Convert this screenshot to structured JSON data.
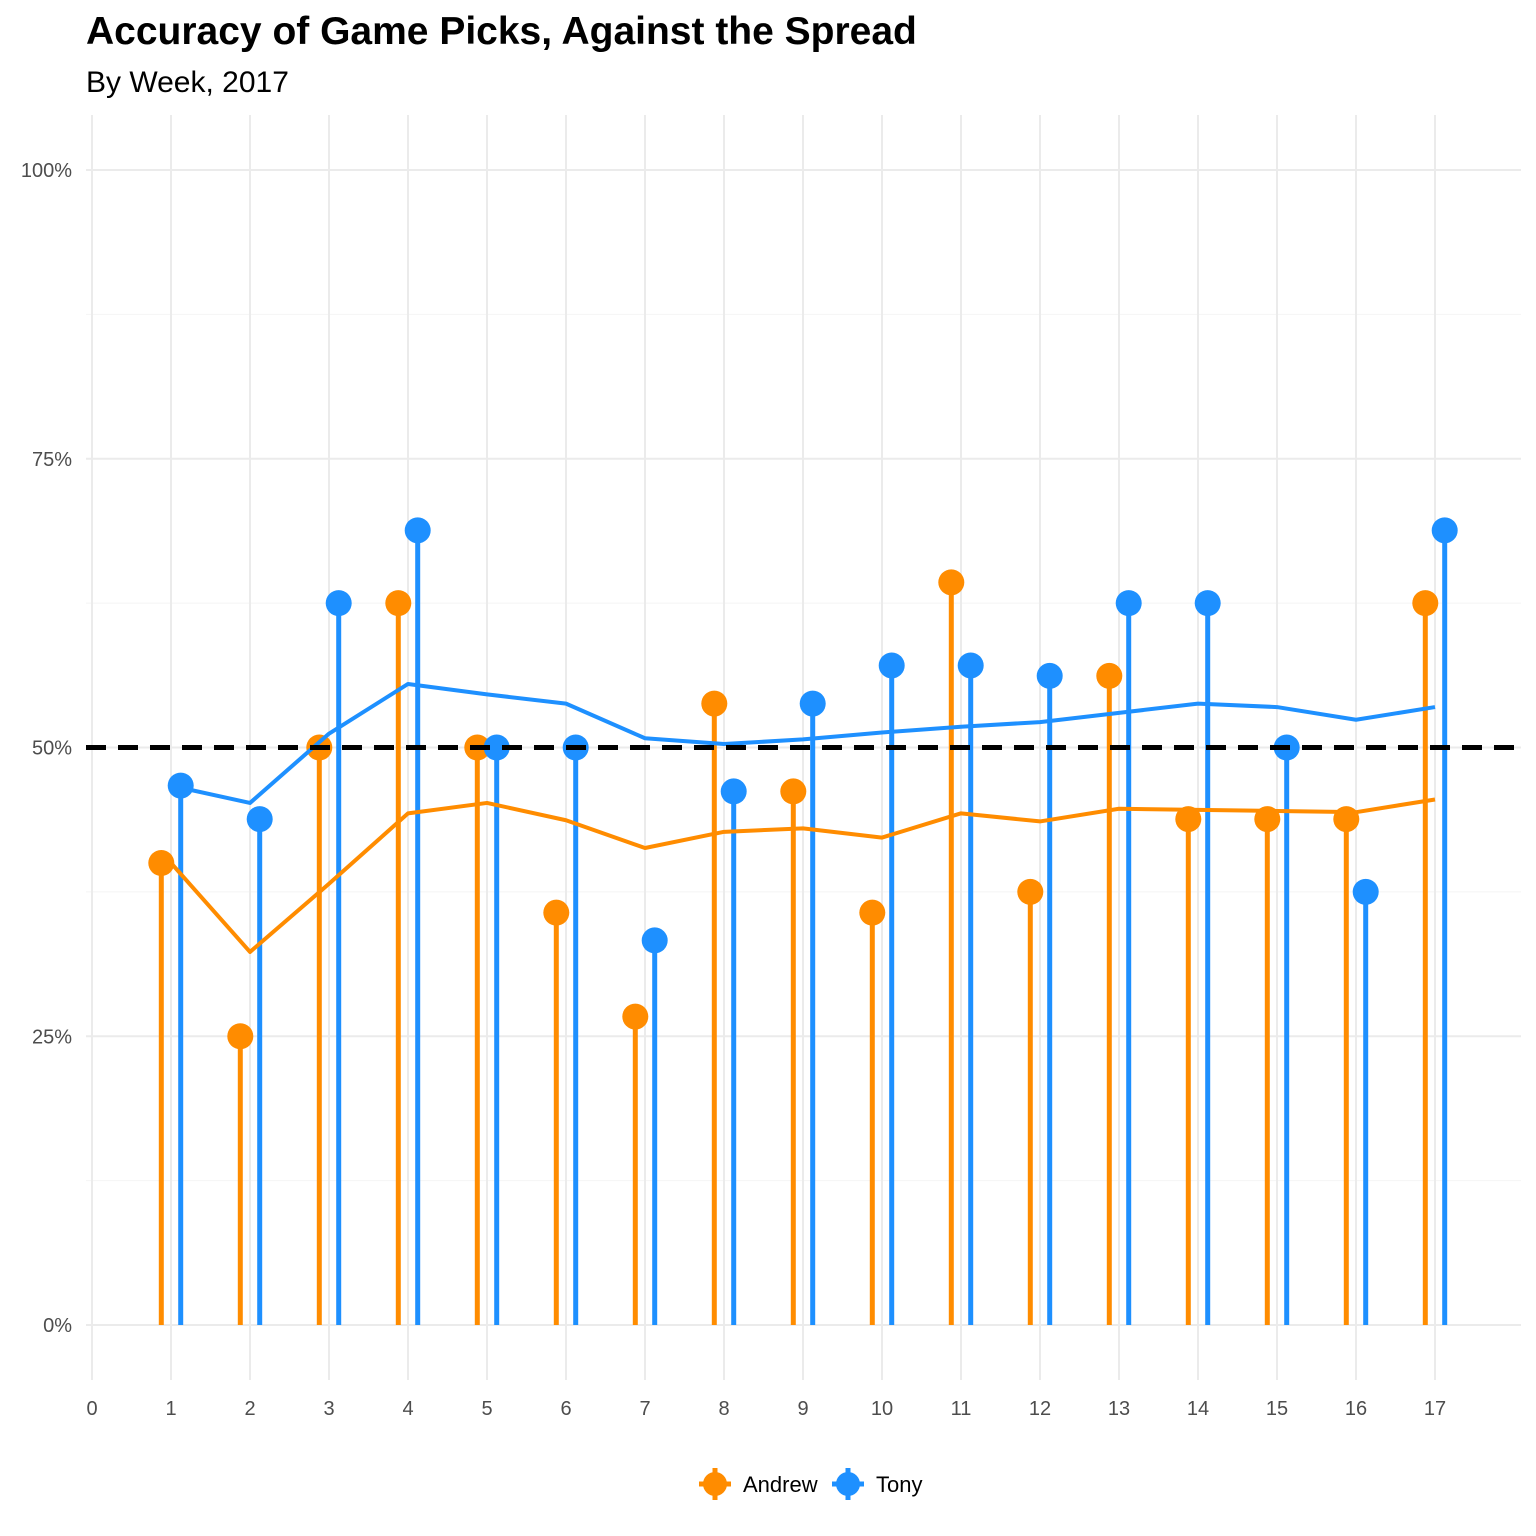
{
  "chart_data": {
    "type": "lollipop",
    "title": "Accuracy of Game Picks, Against the Spread",
    "subtitle": "By Week, 2017",
    "xlabel": "",
    "ylabel": "",
    "x_ticks": [
      0,
      1,
      2,
      3,
      4,
      5,
      6,
      7,
      8,
      9,
      10,
      11,
      12,
      13,
      14,
      15,
      16,
      17
    ],
    "y_ticks": [
      0,
      0.25,
      0.5,
      0.75,
      1.0
    ],
    "y_tick_labels": [
      "0%",
      "25%",
      "50%",
      "75%",
      "100%"
    ],
    "xlim": [
      0,
      17.6
    ],
    "ylim": [
      -0.04,
      1.05
    ],
    "reference_line": {
      "y": 0.5,
      "style": "dashed",
      "color": "#000000"
    },
    "grid": true,
    "legend_position": "bottom",
    "weeks": [
      1,
      2,
      3,
      4,
      5,
      6,
      7,
      8,
      9,
      10,
      11,
      12,
      13,
      14,
      15,
      16,
      17
    ],
    "series": [
      {
        "name": "Andrew",
        "color": "#FF8C00",
        "values": [
          0.4,
          0.25,
          0.5,
          0.625,
          0.5,
          0.357,
          0.267,
          0.538,
          0.462,
          0.357,
          0.643,
          0.375,
          0.562,
          0.438,
          0.438,
          0.438,
          0.625
        ],
        "cumulative": [
          0.4,
          0.323,
          0.382,
          0.443,
          0.452,
          0.437,
          0.413,
          0.427,
          0.43,
          0.422,
          0.443,
          0.436,
          0.447,
          0.446,
          0.445,
          0.444,
          0.455
        ]
      },
      {
        "name": "Tony",
        "color": "#1E90FF",
        "values": [
          0.467,
          0.438,
          0.625,
          0.688,
          0.5,
          0.5,
          0.333,
          0.462,
          0.538,
          0.571,
          0.571,
          0.562,
          0.625,
          0.625,
          0.5,
          0.375,
          0.688
        ],
        "cumulative": [
          0.467,
          0.452,
          0.512,
          0.555,
          0.546,
          0.538,
          0.508,
          0.503,
          0.507,
          0.513,
          0.518,
          0.522,
          0.53,
          0.538,
          0.535,
          0.524,
          0.535
        ]
      }
    ]
  }
}
